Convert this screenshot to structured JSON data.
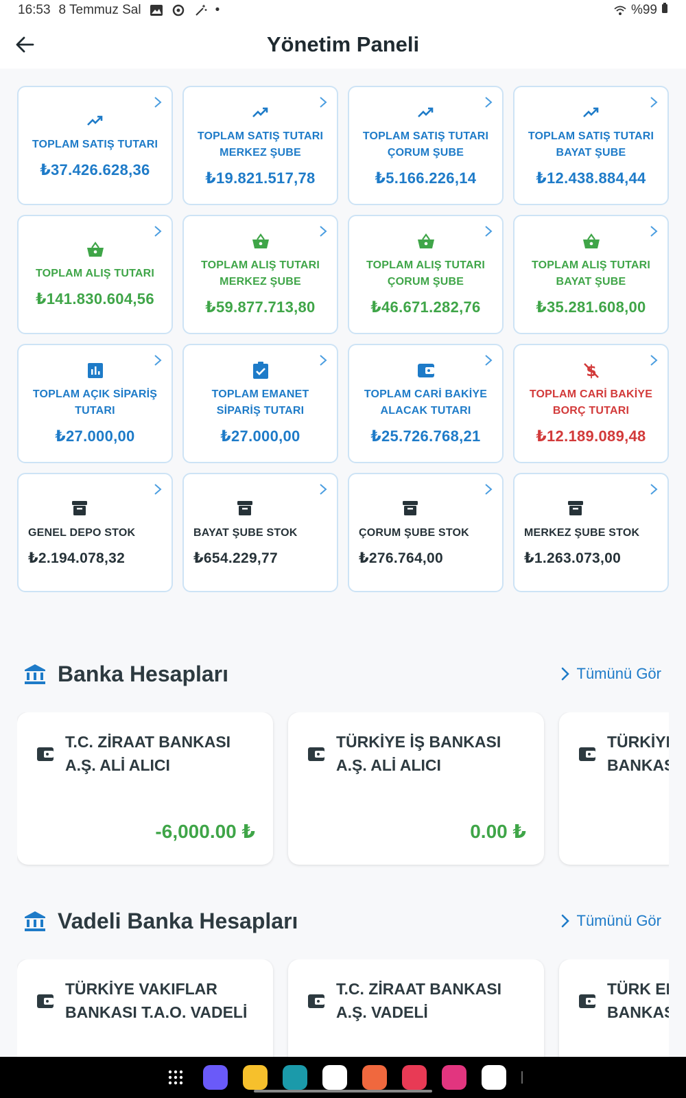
{
  "status_bar": {
    "time": "16:53",
    "date": "8 Temmuz Sal",
    "battery": "%99"
  },
  "header": {
    "title": "Yönetim Paneli"
  },
  "colors": {
    "blue": "#1e7bc8",
    "green": "#3fa548",
    "red": "#d23a3a",
    "dark": "#263238",
    "border": "#cde3f5"
  },
  "summary_cards": [
    {
      "label": "TOPLAM SATIŞ TUTARI",
      "value": "₺37.426.628,36",
      "icon": "trending-up-icon",
      "color": "blue"
    },
    {
      "label": "TOPLAM SATIŞ TUTARI MERKEZ ŞUBE",
      "value": "₺19.821.517,78",
      "icon": "trending-up-icon",
      "color": "blue"
    },
    {
      "label": "TOPLAM SATIŞ TUTARI ÇORUM ŞUBE",
      "value": "₺5.166.226,14",
      "icon": "trending-up-icon",
      "color": "blue"
    },
    {
      "label": "TOPLAM SATIŞ TUTARI BAYAT ŞUBE",
      "value": "₺12.438.884,44",
      "icon": "trending-up-icon",
      "color": "blue"
    },
    {
      "label": "TOPLAM ALIŞ TUTARI",
      "value": "₺141.830.604,56",
      "icon": "basket-icon",
      "color": "green"
    },
    {
      "label": "TOPLAM ALIŞ TUTARI MERKEZ ŞUBE",
      "value": "₺59.877.713,80",
      "icon": "basket-icon",
      "color": "green"
    },
    {
      "label": "TOPLAM ALIŞ TUTARI ÇORUM ŞUBE",
      "value": "₺46.671.282,76",
      "icon": "basket-icon",
      "color": "green"
    },
    {
      "label": "TOPLAM ALIŞ TUTARI BAYAT ŞUBE",
      "value": "₺35.281.608,00",
      "icon": "basket-icon",
      "color": "green"
    },
    {
      "label": "TOPLAM AÇIK SİPARİŞ TUTARI",
      "value": "₺27.000,00",
      "icon": "bar-chart-icon",
      "color": "blue"
    },
    {
      "label": "TOPLAM EMANET SİPARİŞ TUTARI",
      "value": "₺27.000,00",
      "icon": "clipboard-check-icon",
      "color": "blue"
    },
    {
      "label": "TOPLAM CARİ BAKİYE ALACAK TUTARI",
      "value": "₺25.726.768,21",
      "icon": "wallet-icon",
      "color": "blue"
    },
    {
      "label": "TOPLAM CARİ BAKİYE BORÇ TUTARI",
      "value": "₺12.189.089,48",
      "icon": "money-off-icon",
      "color": "red"
    },
    {
      "label": "GENEL DEPO STOK",
      "value": "₺2.194.078,32",
      "icon": "archive-icon",
      "color": "dark"
    },
    {
      "label": "BAYAT ŞUBE STOK",
      "value": "₺654.229,77",
      "icon": "archive-icon",
      "color": "dark"
    },
    {
      "label": "ÇORUM ŞUBE STOK",
      "value": "₺276.764,00",
      "icon": "archive-icon",
      "color": "dark"
    },
    {
      "label": "MERKEZ ŞUBE STOK",
      "value": "₺1.263.073,00",
      "icon": "archive-icon",
      "color": "dark"
    }
  ],
  "bank_accounts": {
    "title": "Banka Hesapları",
    "see_all": "Tümünü Gör",
    "items": [
      {
        "name": "T.C. ZİRAAT BANKASI\nA.Ş. ALİ ALICI",
        "balance": "-6,000.00 ₺"
      },
      {
        "name": "TÜRKİYE İŞ BANKASI\nA.Ş. ALİ ALICI",
        "balance": "0.00 ₺"
      },
      {
        "name": "TÜRKİYE\nBANKASI",
        "balance": ""
      }
    ]
  },
  "term_accounts": {
    "title": "Vadeli Banka Hesapları",
    "see_all": "Tümünü Gör",
    "items": [
      {
        "name": "TÜRKİYE VAKIFLAR\nBANKASI T.A.O. VADELİ",
        "balance": ""
      },
      {
        "name": "T.C. ZİRAAT BANKASI\nA.Ş. VADELİ",
        "balance": ""
      },
      {
        "name": "TÜRK EK\nBANKASI",
        "balance": ""
      }
    ]
  },
  "nav_apps": [
    {
      "name": "app-drawer-icon"
    },
    {
      "name": "internet-icon",
      "color": "#6a5af9"
    },
    {
      "name": "notes-icon",
      "color": "#f6c02c"
    },
    {
      "name": "calendar-icon",
      "color": "#1b9aaa"
    },
    {
      "name": "messages-icon",
      "color": "#ffffff"
    },
    {
      "name": "contacts-icon",
      "color": "#f0683e"
    },
    {
      "name": "camera-icon",
      "color": "#e83a55"
    },
    {
      "name": "gallery-icon",
      "color": "#e2357f"
    },
    {
      "name": "bixby-icon",
      "color": "#ffffff"
    }
  ]
}
